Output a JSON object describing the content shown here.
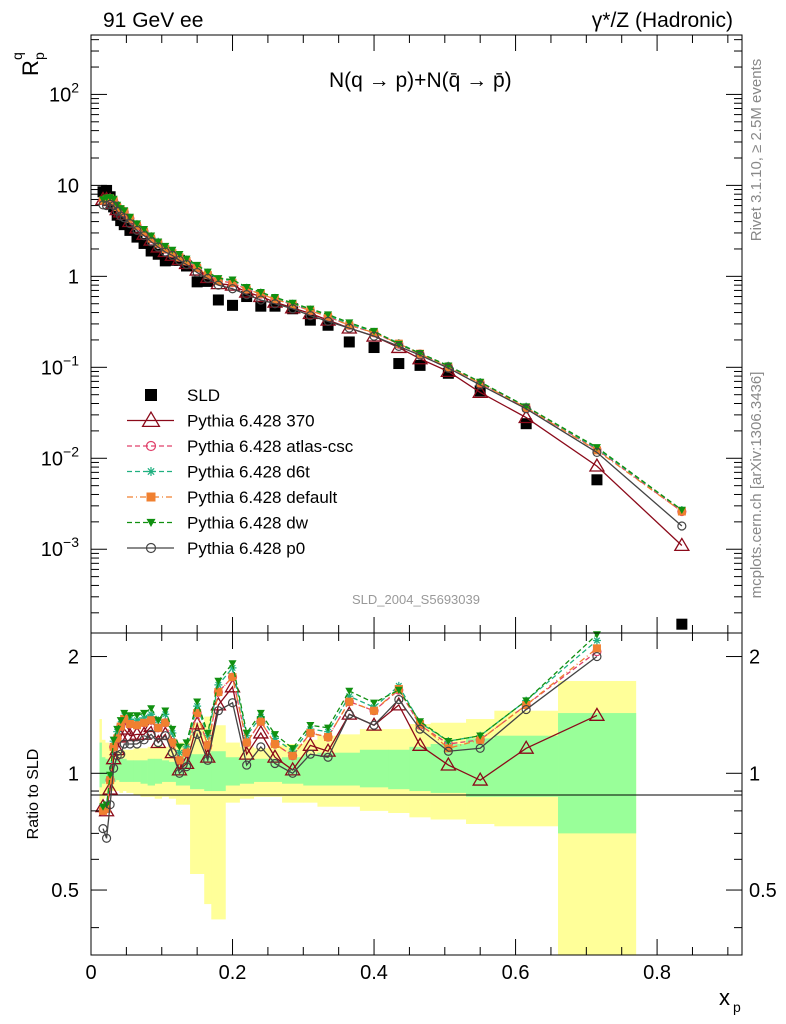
{
  "header": {
    "left": "91 GeV ee",
    "right": "γ*/Z (Hadronic)"
  },
  "side_labels": {
    "rivet": "Rivet 3.1.10, ≥ 2.5M events",
    "mcplots": "mcplots.cern.ch [arXiv:1306.3436]"
  },
  "chart_data": [
    {
      "type": "scatter",
      "title": "N(q → p)+N(q̄ → p̄)",
      "ylabel": "R",
      "ylabel_sup": "q",
      "ylabel_sub": "p",
      "xlim": [
        0,
        0.92
      ],
      "ylim": [
        0.00012,
        450
      ],
      "yscale": "log",
      "y_ticks": [
        {
          "v": 100,
          "base": "10",
          "exp": "2"
        },
        {
          "v": 10,
          "base": "10",
          "exp": ""
        },
        {
          "v": 1,
          "base": "1",
          "exp": ""
        },
        {
          "v": 0.1,
          "base": "10",
          "exp": "−1"
        },
        {
          "v": 0.01,
          "base": "10",
          "exp": "−2"
        },
        {
          "v": 0.001,
          "base": "10",
          "exp": "−3"
        }
      ],
      "watermark": "SLD_2004_S5693039",
      "legend_position": "bottom-left",
      "x": [
        0.017,
        0.022,
        0.027,
        0.032,
        0.037,
        0.042,
        0.047,
        0.055,
        0.065,
        0.075,
        0.085,
        0.095,
        0.105,
        0.115,
        0.125,
        0.135,
        0.15,
        0.165,
        0.18,
        0.2,
        0.22,
        0.24,
        0.26,
        0.285,
        0.31,
        0.335,
        0.365,
        0.4,
        0.435,
        0.465,
        0.505,
        0.55,
        0.615,
        0.715,
        0.835
      ],
      "series": [
        {
          "name": "SLD",
          "color": "#000000",
          "marker": "square",
          "values": [
            8.5,
            8.8,
            7.5,
            5.8,
            4.7,
            4.1,
            3.7,
            3.2,
            2.7,
            2.3,
            1.9,
            1.75,
            1.48,
            1.5,
            1.5,
            1.3,
            0.87,
            0.88,
            0.55,
            0.48,
            0.6,
            0.47,
            0.47,
            0.44,
            0.33,
            0.29,
            0.19,
            0.165,
            0.11,
            0.105,
            0.086,
            0.055,
            0.024,
            0.0058,
            0.00015
          ]
        },
        {
          "name": "Pythia 6.428 370",
          "color": "#8b0a1a",
          "marker": "triangle-open",
          "dash": "",
          "values": [
            7.0,
            7.0,
            6.8,
            6.3,
            5.4,
            5.1,
            4.8,
            4.0,
            3.4,
            2.9,
            2.5,
            2.1,
            1.87,
            1.7,
            1.53,
            1.38,
            1.17,
            0.97,
            0.83,
            0.8,
            0.67,
            0.6,
            0.52,
            0.45,
            0.39,
            0.33,
            0.27,
            0.22,
            0.165,
            0.124,
            0.09,
            0.053,
            0.028,
            0.0082,
            0.0011
          ]
        },
        {
          "name": "Pythia 6.428 atlas-csc",
          "color": "#e0406a",
          "marker": "circle-open",
          "dash": "5,3",
          "values": [
            6.8,
            7.1,
            7.2,
            6.8,
            5.8,
            5.4,
            5.1,
            4.3,
            3.6,
            3.1,
            2.6,
            2.3,
            2.0,
            1.8,
            1.62,
            1.47,
            1.24,
            1.04,
            0.89,
            0.85,
            0.72,
            0.64,
            0.56,
            0.49,
            0.42,
            0.36,
            0.29,
            0.24,
            0.18,
            0.14,
            0.102,
            0.067,
            0.036,
            0.0125,
            0.0026
          ]
        },
        {
          "name": "Pythia 6.428 d6t",
          "color": "#20b080",
          "marker": "star",
          "dash": "5,3",
          "values": [
            6.9,
            7.2,
            7.3,
            7.0,
            6.0,
            5.5,
            5.2,
            4.4,
            3.7,
            3.2,
            2.7,
            2.4,
            2.1,
            1.9,
            1.7,
            1.52,
            1.3,
            1.1,
            0.93,
            0.9,
            0.75,
            0.66,
            0.58,
            0.5,
            0.43,
            0.37,
            0.3,
            0.245,
            0.185,
            0.142,
            0.104,
            0.069,
            0.037,
            0.0128,
            0.0027
          ]
        },
        {
          "name": "Pythia 6.428 default",
          "color": "#f08030",
          "marker": "square",
          "dash": "6,3,1,3",
          "values": [
            6.8,
            7.1,
            7.2,
            6.8,
            5.8,
            5.4,
            5.1,
            4.3,
            3.6,
            3.1,
            2.6,
            2.3,
            2.0,
            1.8,
            1.62,
            1.47,
            1.24,
            1.04,
            0.89,
            0.85,
            0.72,
            0.64,
            0.56,
            0.49,
            0.42,
            0.36,
            0.29,
            0.24,
            0.182,
            0.141,
            0.1,
            0.067,
            0.036,
            0.0122,
            0.0026
          ]
        },
        {
          "name": "Pythia 6.428 dw",
          "color": "#109010",
          "marker": "triangle-down",
          "dash": "5,3",
          "values": [
            7.0,
            7.3,
            7.4,
            7.1,
            6.1,
            5.6,
            5.3,
            4.5,
            3.8,
            3.3,
            2.8,
            2.4,
            2.15,
            1.95,
            1.75,
            1.56,
            1.33,
            1.12,
            0.95,
            0.92,
            0.76,
            0.67,
            0.59,
            0.51,
            0.44,
            0.38,
            0.31,
            0.25,
            0.18,
            0.143,
            0.104,
            0.069,
            0.037,
            0.0132,
            0.0027
          ]
        },
        {
          "name": "Pythia 6.428 p0",
          "color": "#444444",
          "marker": "circle-open",
          "dash": "",
          "values": [
            6.1,
            6.0,
            6.2,
            6.0,
            5.2,
            4.6,
            4.4,
            3.8,
            3.2,
            2.8,
            2.4,
            2.1,
            1.85,
            1.7,
            1.5,
            1.35,
            1.1,
            0.95,
            0.8,
            0.73,
            0.63,
            0.55,
            0.5,
            0.44,
            0.37,
            0.32,
            0.27,
            0.22,
            0.17,
            0.136,
            0.098,
            0.064,
            0.035,
            0.0116,
            0.0018
          ]
        }
      ]
    },
    {
      "type": "line",
      "ylabel": "Ratio to SLD",
      "xlabel": "x",
      "xlabel_sub": "p",
      "xlim": [
        0,
        0.92
      ],
      "ylim": [
        0.34,
        2.3
      ],
      "y_ticks": [
        0.5,
        1,
        2
      ],
      "x_ticks": [
        0,
        0.2,
        0.4,
        0.6,
        0.8
      ],
      "band_edges": [
        0.012,
        0.015,
        0.02,
        0.025,
        0.03,
        0.035,
        0.04,
        0.045,
        0.05,
        0.06,
        0.07,
        0.08,
        0.09,
        0.1,
        0.11,
        0.12,
        0.13,
        0.14,
        0.16,
        0.17,
        0.19,
        0.21,
        0.23,
        0.25,
        0.27,
        0.3,
        0.32,
        0.35,
        0.38,
        0.42,
        0.45,
        0.48,
        0.53,
        0.57,
        0.66,
        0.77
      ],
      "band_inner": [
        [
          0.92,
          1.2
        ],
        [
          0.94,
          1.1
        ],
        [
          0.95,
          1.09
        ],
        [
          0.95,
          1.08
        ],
        [
          0.95,
          1.08
        ],
        [
          0.96,
          1.08
        ],
        [
          0.95,
          1.09
        ],
        [
          0.95,
          1.09
        ],
        [
          0.95,
          1.08
        ],
        [
          0.95,
          1.08
        ],
        [
          0.94,
          1.08
        ],
        [
          0.93,
          1.09
        ],
        [
          0.94,
          1.09
        ],
        [
          0.95,
          1.08
        ],
        [
          0.95,
          1.07
        ],
        [
          0.93,
          1.1
        ],
        [
          0.93,
          1.1
        ],
        [
          0.91,
          1.12
        ],
        [
          0.9,
          1.13
        ],
        [
          0.9,
          1.14
        ],
        [
          0.93,
          1.1
        ],
        [
          0.94,
          1.09
        ],
        [
          0.95,
          1.09
        ],
        [
          0.95,
          1.09
        ],
        [
          0.94,
          1.1
        ],
        [
          0.93,
          1.12
        ],
        [
          0.93,
          1.13
        ],
        [
          0.93,
          1.13
        ],
        [
          0.92,
          1.15
        ],
        [
          0.91,
          1.15
        ],
        [
          0.9,
          1.17
        ],
        [
          0.89,
          1.19
        ],
        [
          0.87,
          1.23
        ],
        [
          0.87,
          1.25
        ],
        [
          0.7,
          1.43
        ]
      ],
      "band_outer": [
        [
          0.82,
          1.38
        ],
        [
          0.86,
          1.22
        ],
        [
          0.88,
          1.2
        ],
        [
          0.9,
          1.17
        ],
        [
          0.9,
          1.15
        ],
        [
          0.9,
          1.14
        ],
        [
          0.89,
          1.15
        ],
        [
          0.9,
          1.15
        ],
        [
          0.89,
          1.15
        ],
        [
          0.88,
          1.16
        ],
        [
          0.87,
          1.16
        ],
        [
          0.87,
          1.17
        ],
        [
          0.86,
          1.18
        ],
        [
          0.87,
          1.17
        ],
        [
          0.86,
          1.17
        ],
        [
          0.83,
          1.2
        ],
        [
          0.83,
          1.2
        ],
        [
          0.55,
          1.35
        ],
        [
          0.46,
          1.4
        ],
        [
          0.42,
          1.33
        ],
        [
          0.84,
          1.2
        ],
        [
          0.86,
          1.17
        ],
        [
          0.87,
          1.16
        ],
        [
          0.87,
          1.18
        ],
        [
          0.84,
          1.19
        ],
        [
          0.84,
          1.22
        ],
        [
          0.82,
          1.25
        ],
        [
          0.82,
          1.26
        ],
        [
          0.8,
          1.3
        ],
        [
          0.79,
          1.3
        ],
        [
          0.77,
          1.34
        ],
        [
          0.76,
          1.35
        ],
        [
          0.74,
          1.38
        ],
        [
          0.73,
          1.45
        ],
        [
          0.34,
          1.73
        ]
      ],
      "series": [
        {
          "name": "Pythia 6.428 370",
          "color": "#8b0a1a",
          "marker": "triangle-open",
          "values": [
            0.82,
            0.8,
            0.91,
            1.09,
            1.15,
            1.24,
            1.3,
            1.25,
            1.26,
            1.26,
            1.32,
            1.2,
            1.26,
            1.13,
            1.02,
            1.06,
            1.34,
            1.1,
            1.5,
            1.67,
            1.12,
            1.27,
            1.1,
            1.02,
            1.18,
            1.14,
            1.42,
            1.33,
            1.5,
            1.18,
            1.05,
            0.96,
            1.16,
            1.41
          ]
        },
        {
          "name": "Pythia 6.428 atlas-csc",
          "color": "#e0406a",
          "marker": "circle-open",
          "values": [
            0.8,
            0.81,
            0.96,
            1.17,
            1.23,
            1.32,
            1.38,
            1.34,
            1.33,
            1.35,
            1.37,
            1.31,
            1.35,
            1.2,
            1.08,
            1.13,
            1.43,
            1.18,
            1.62,
            1.77,
            1.2,
            1.36,
            1.19,
            1.11,
            1.27,
            1.24,
            1.53,
            1.45,
            1.64,
            1.33,
            1.19,
            1.22,
            1.5,
            2.06
          ]
        },
        {
          "name": "Pythia 6.428 d6t",
          "color": "#20b080",
          "marker": "star",
          "values": [
            0.81,
            0.82,
            0.97,
            1.21,
            1.28,
            1.34,
            1.41,
            1.38,
            1.37,
            1.39,
            1.42,
            1.37,
            1.42,
            1.27,
            1.13,
            1.17,
            1.49,
            1.25,
            1.69,
            1.87,
            1.25,
            1.4,
            1.23,
            1.14,
            1.3,
            1.28,
            1.58,
            1.48,
            1.68,
            1.35,
            1.21,
            1.25,
            1.54,
            2.2
          ]
        },
        {
          "name": "Pythia 6.428 default",
          "color": "#f08030",
          "marker": "square",
          "values": [
            0.8,
            0.81,
            0.96,
            1.17,
            1.23,
            1.32,
            1.38,
            1.34,
            1.33,
            1.35,
            1.37,
            1.31,
            1.35,
            1.2,
            1.08,
            1.13,
            1.43,
            1.18,
            1.62,
            1.77,
            1.2,
            1.36,
            1.19,
            1.11,
            1.27,
            1.24,
            1.53,
            1.45,
            1.65,
            1.34,
            1.16,
            1.22,
            1.5,
            2.1
          ]
        },
        {
          "name": "Pythia 6.428 dw",
          "color": "#109010",
          "marker": "triangle-down",
          "values": [
            0.82,
            0.83,
            0.99,
            1.22,
            1.3,
            1.37,
            1.43,
            1.41,
            1.41,
            1.43,
            1.47,
            1.37,
            1.45,
            1.3,
            1.17,
            1.2,
            1.53,
            1.27,
            1.73,
            1.92,
            1.27,
            1.43,
            1.26,
            1.16,
            1.33,
            1.31,
            1.63,
            1.52,
            1.64,
            1.36,
            1.21,
            1.25,
            1.54,
            2.28
          ]
        },
        {
          "name": "Pythia 6.428 p0",
          "color": "#444444",
          "marker": "circle-open",
          "values": [
            0.72,
            0.68,
            0.83,
            1.03,
            1.11,
            1.12,
            1.19,
            1.19,
            1.19,
            1.22,
            1.26,
            1.2,
            1.25,
            1.13,
            1.0,
            1.04,
            1.26,
            1.08,
            1.45,
            1.52,
            1.05,
            1.17,
            1.06,
            1.0,
            1.12,
            1.1,
            1.42,
            1.33,
            1.55,
            1.3,
            1.14,
            1.16,
            1.46,
            2.0
          ]
        }
      ]
    }
  ]
}
